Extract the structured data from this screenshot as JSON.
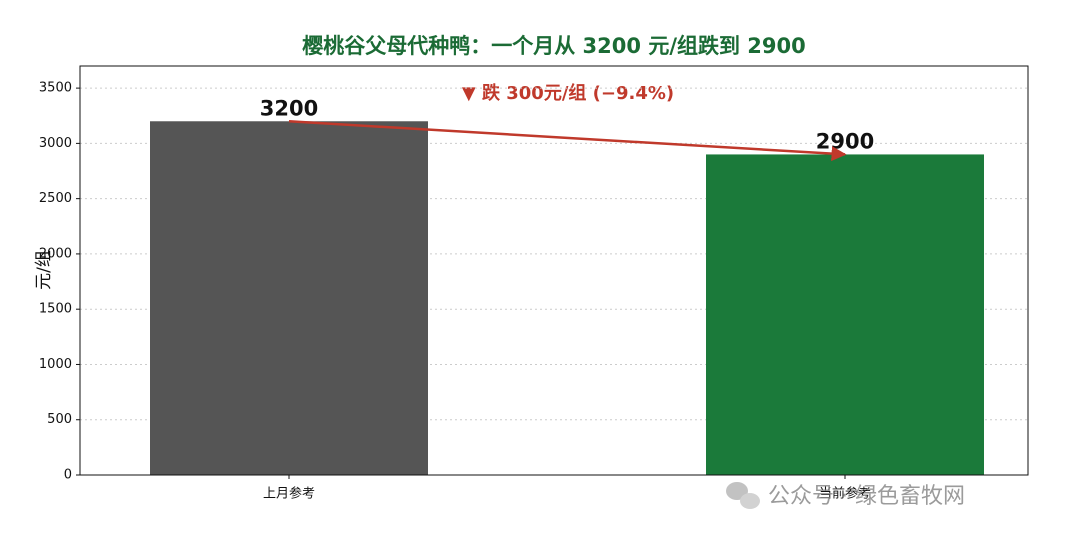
{
  "chart_data": {
    "type": "bar",
    "title": "樱桃谷父母代种鸭：一个月从 3200 元/组跌到 2900",
    "annotation": "▼ 跌 300元/组 (−9.4%)",
    "y_label": "元/组",
    "categories": [
      "上月参考",
      "当前参考"
    ],
    "values": [
      3200,
      2900
    ],
    "colors": [
      "#555555",
      "#1b7a3a"
    ],
    "ylim": [
      0,
      3700
    ],
    "yticks": [
      0,
      500,
      1000,
      1500,
      2000,
      2500,
      3000,
      3500
    ],
    "grid": true,
    "watermark": "公众号 · 绿色畜牧网"
  }
}
